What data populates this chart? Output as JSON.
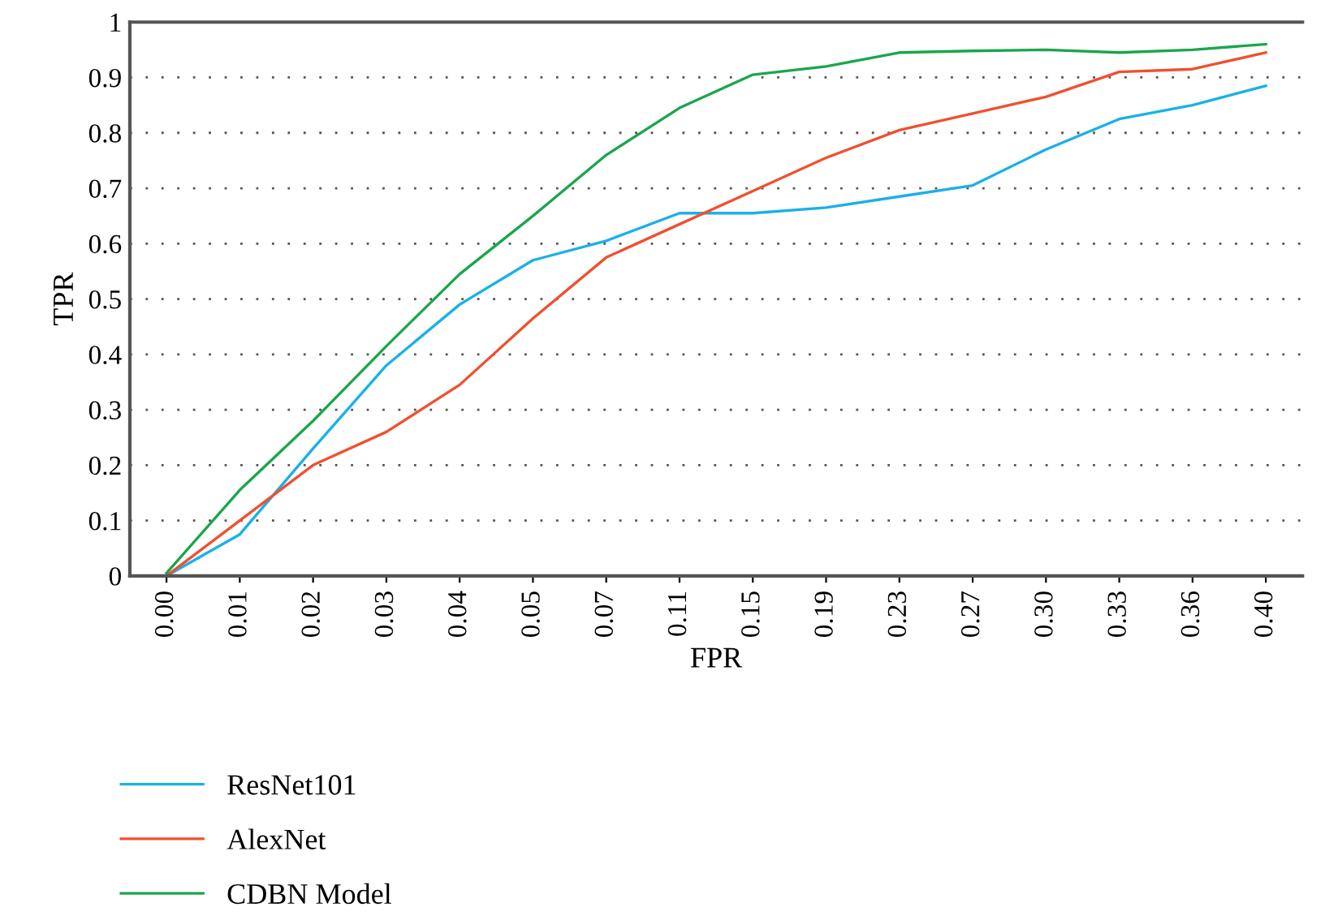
{
  "chart_data": {
    "type": "line",
    "xlabel": "FPR",
    "ylabel": "TPR",
    "categories": [
      "0.00",
      "0.01",
      "0.02",
      "0.03",
      "0.04",
      "0.05",
      "0.07",
      "0.11",
      "0.15",
      "0.19",
      "0.23",
      "0.27",
      "0.30",
      "0.33",
      "0.36",
      "0.40"
    ],
    "series": [
      {
        "name": "ResNet101",
        "color": "#1ab0e8",
        "values": [
          0.0,
          0.075,
          0.23,
          0.38,
          0.49,
          0.57,
          0.605,
          0.655,
          0.655,
          0.665,
          0.685,
          0.705,
          0.77,
          0.825,
          0.85,
          0.885
        ]
      },
      {
        "name": "AlexNet",
        "color": "#f0502f",
        "values": [
          0.0,
          0.1,
          0.2,
          0.26,
          0.345,
          0.465,
          0.575,
          0.635,
          0.695,
          0.755,
          0.805,
          0.835,
          0.865,
          0.91,
          0.915,
          0.945
        ]
      },
      {
        "name": "CDBN Model",
        "color": "#1aa64a",
        "values": [
          0.005,
          0.155,
          0.28,
          0.415,
          0.545,
          0.65,
          0.76,
          0.845,
          0.905,
          0.92,
          0.945,
          0.948,
          0.95,
          0.945,
          0.95,
          0.96
        ]
      }
    ],
    "ylim": [
      0,
      1
    ],
    "yticks": [
      0,
      0.1,
      0.2,
      0.3,
      0.4,
      0.5,
      0.6,
      0.7,
      0.8,
      0.9,
      1
    ],
    "grid": "y",
    "legend": "bottom",
    "marker": "none",
    "line_style": "solid"
  }
}
